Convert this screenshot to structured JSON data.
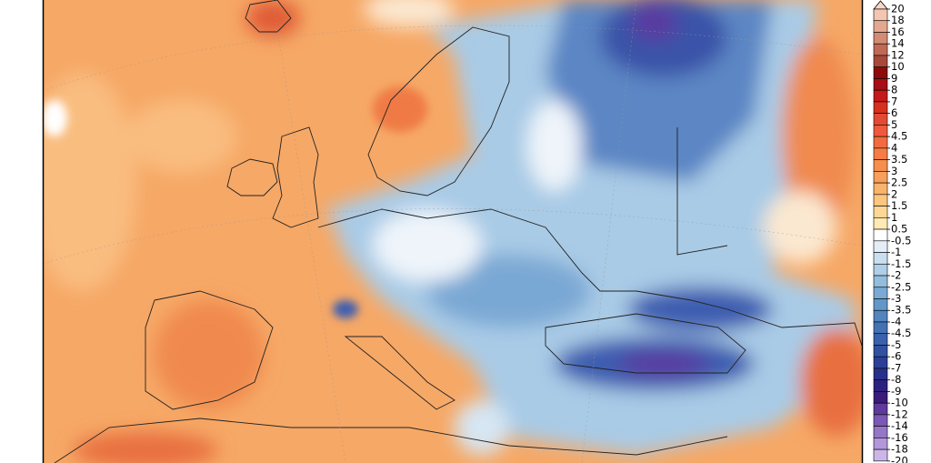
{
  "colorbar": {
    "levels": [
      20,
      18,
      16,
      14,
      12,
      10,
      9,
      8,
      7,
      6,
      5,
      4.5,
      4,
      3.5,
      3,
      2.5,
      2,
      1.5,
      1,
      0.5,
      -0.5,
      -1,
      -1.5,
      -2,
      -2.5,
      -3,
      -3.5,
      -4,
      -4.5,
      -5,
      -6,
      -7,
      -8,
      -9,
      -10,
      -12,
      -14,
      -16,
      -18,
      -20
    ],
    "colors": [
      "#f2c6b0",
      "#e4a890",
      "#d48b74",
      "#c06a55",
      "#a8483a",
      "#8c0a0a",
      "#a50f15",
      "#c41a1c",
      "#d7301f",
      "#e34a33",
      "#ef5a3a",
      "#f26b3f",
      "#f47d45",
      "#f68e4e",
      "#f8a05a",
      "#fab36b",
      "#fcc67e",
      "#fdd895",
      "#feeab4",
      "#ffffff",
      "#e3eef8",
      "#c9dff0",
      "#aecfe7",
      "#93bddd",
      "#7aaad3",
      "#6497c9",
      "#5284bf",
      "#4472b5",
      "#3a61ab",
      "#3150a0",
      "#2a3f95",
      "#26308a",
      "#2b217e",
      "#3a1a7a",
      "#5d3a9b",
      "#7a58b3",
      "#9676c8",
      "#b297da",
      "#ccb6e8"
    ],
    "arrow_color": "#f7d8c8"
  }
}
